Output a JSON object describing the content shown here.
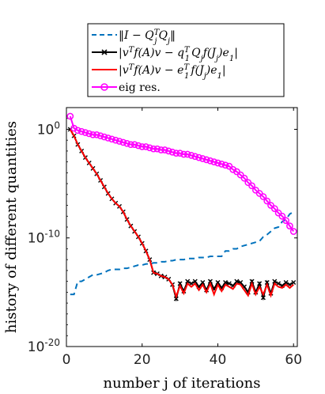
{
  "chart_data": {
    "type": "line",
    "xlabel": "number j of iterations",
    "ylabel": "history of different quantities",
    "xlim": [
      0,
      61
    ],
    "ylim_log10": [
      -20,
      2
    ],
    "y_scale": "log",
    "grid": false,
    "legend_placement": "top",
    "x_ticks": [
      0,
      20,
      40,
      60
    ],
    "x_tick_labels": [
      "0",
      "20",
      "40",
      "60"
    ],
    "y_ticks_log10": [
      0,
      -10,
      -20
    ],
    "y_tick_labels": [
      {
        "base": "10",
        "exp": "0"
      },
      {
        "base": "10",
        "exp": "-10"
      },
      {
        "base": "10",
        "exp": "-20"
      }
    ],
    "series": [
      {
        "name": "||I − Q_j^T Q_j||",
        "legend_latex": "‖I − Q",
        "color": "#0072BD",
        "style": "dashed",
        "marker": "none",
        "x": [
          1,
          2,
          3,
          4,
          5,
          6,
          7,
          8,
          9,
          10,
          11,
          12,
          13,
          14,
          15,
          16,
          17,
          18,
          19,
          20,
          21,
          22,
          23,
          24,
          25,
          26,
          27,
          28,
          29,
          30,
          31,
          32,
          33,
          34,
          35,
          36,
          37,
          38,
          39,
          40,
          41,
          42,
          43,
          44,
          45,
          46,
          47,
          48,
          49,
          50,
          51,
          52,
          53,
          54,
          55,
          56,
          57,
          58,
          59,
          60
        ],
        "log10_y": [
          -15.2,
          -15.2,
          -14.0,
          -14.0,
          -13.8,
          -13.6,
          -13.4,
          -13.4,
          -13.3,
          -13.2,
          -13.0,
          -12.9,
          -12.9,
          -12.9,
          -12.8,
          -12.8,
          -12.7,
          -12.6,
          -12.5,
          -12.5,
          -12.4,
          -12.4,
          -12.3,
          -12.3,
          -12.2,
          -12.2,
          -12.1,
          -12.1,
          -12.0,
          -12.0,
          -12.0,
          -11.9,
          -11.9,
          -11.9,
          -11.8,
          -11.8,
          -11.8,
          -11.7,
          -11.7,
          -11.7,
          -11.7,
          -11.2,
          -11.2,
          -11.0,
          -11.0,
          -10.8,
          -10.7,
          -10.6,
          -10.5,
          -10.4,
          -10.3,
          -9.9,
          -9.7,
          -9.4,
          -9.1,
          -9.0,
          -8.5,
          -8.3,
          -7.8,
          -7.6
        ]
      },
      {
        "name": "|v^T f(A) v − q_1^T Q_j f(J_j) e_1|",
        "color": "#000000",
        "style": "solid",
        "marker": "x",
        "x": [
          1,
          2,
          3,
          4,
          5,
          6,
          7,
          8,
          9,
          10,
          11,
          12,
          13,
          14,
          15,
          16,
          17,
          18,
          19,
          20,
          21,
          22,
          23,
          24,
          25,
          26,
          27,
          28,
          29,
          30,
          31,
          32,
          33,
          34,
          35,
          36,
          37,
          38,
          39,
          40,
          41,
          42,
          43,
          44,
          45,
          46,
          47,
          48,
          49,
          50,
          51,
          52,
          53,
          54,
          55,
          56,
          57,
          58,
          59,
          60
        ],
        "log10_y": [
          0.0,
          -0.6,
          -1.4,
          -2.0,
          -2.6,
          -3.1,
          -3.6,
          -4.1,
          -4.7,
          -5.3,
          -5.9,
          -6.4,
          -6.8,
          -7.1,
          -7.6,
          -8.3,
          -8.9,
          -9.4,
          -9.9,
          -10.5,
          -11.2,
          -12.0,
          -13.2,
          -13.3,
          -13.5,
          -13.6,
          -13.8,
          -14.3,
          -15.6,
          -14.2,
          -14.9,
          -14.0,
          -14.2,
          -14.0,
          -14.5,
          -14.1,
          -14.8,
          -14.0,
          -14.7,
          -14.1,
          -14.6,
          -14.1,
          -14.2,
          -14.4,
          -14.0,
          -14.1,
          -14.5,
          -15.0,
          -14.0,
          -15.0,
          -14.2,
          -15.5,
          -14.1,
          -15.1,
          -14.0,
          -14.2,
          -14.4,
          -14.1,
          -14.3,
          -14.1
        ]
      },
      {
        "name": "|v^T f(A) v − e_1^T f(J_j) e_1|",
        "color": "#FF0000",
        "style": "solid",
        "marker": "none",
        "x": [
          1,
          2,
          3,
          4,
          5,
          6,
          7,
          8,
          9,
          10,
          11,
          12,
          13,
          14,
          15,
          16,
          17,
          18,
          19,
          20,
          21,
          22,
          23,
          24,
          25,
          26,
          27,
          28,
          29,
          30,
          31,
          32,
          33,
          34,
          35,
          36,
          37,
          38,
          39,
          40,
          41,
          42,
          43,
          44,
          45,
          46,
          47,
          48,
          49,
          50,
          51,
          52,
          53,
          54,
          55,
          56,
          57,
          58,
          59,
          60
        ],
        "log10_y": [
          0.0,
          -0.6,
          -1.4,
          -2.0,
          -2.6,
          -3.1,
          -3.6,
          -4.1,
          -4.7,
          -5.3,
          -5.9,
          -6.4,
          -6.8,
          -7.1,
          -7.6,
          -8.3,
          -8.9,
          -9.4,
          -9.9,
          -10.5,
          -11.2,
          -12.0,
          -13.2,
          -13.3,
          -13.5,
          -13.6,
          -13.8,
          -14.3,
          -15.4,
          -14.4,
          -15.1,
          -14.2,
          -14.5,
          -14.2,
          -14.8,
          -14.3,
          -15.0,
          -14.2,
          -15.2,
          -14.3,
          -14.9,
          -14.3,
          -14.5,
          -14.7,
          -14.2,
          -14.3,
          -14.8,
          -15.3,
          -14.2,
          -15.2,
          -14.5,
          -15.2,
          -14.3,
          -15.3,
          -14.2,
          -14.5,
          -14.6,
          -14.3,
          -14.6,
          -14.3
        ]
      },
      {
        "name": "eig res.",
        "color": "#FF00FF",
        "style": "solid",
        "marker": "o",
        "x": [
          1,
          2,
          3,
          4,
          5,
          6,
          7,
          8,
          9,
          10,
          11,
          12,
          13,
          14,
          15,
          16,
          17,
          18,
          19,
          20,
          21,
          22,
          23,
          24,
          25,
          26,
          27,
          28,
          29,
          30,
          31,
          32,
          33,
          34,
          35,
          36,
          37,
          38,
          39,
          40,
          41,
          42,
          43,
          44,
          45,
          46,
          47,
          48,
          49,
          50,
          51,
          52,
          53,
          54,
          55,
          56,
          57,
          58,
          59,
          60
        ],
        "log10_y": [
          1.2,
          0.1,
          -0.1,
          -0.2,
          -0.3,
          -0.4,
          -0.5,
          -0.5,
          -0.6,
          -0.7,
          -0.8,
          -0.9,
          -1.0,
          -1.1,
          -1.2,
          -1.3,
          -1.4,
          -1.4,
          -1.5,
          -1.6,
          -1.6,
          -1.7,
          -1.8,
          -1.8,
          -1.9,
          -1.9,
          -2.0,
          -2.1,
          -2.2,
          -2.2,
          -2.3,
          -2.3,
          -2.4,
          -2.5,
          -2.6,
          -2.7,
          -2.8,
          -2.9,
          -3.0,
          -3.1,
          -3.2,
          -3.3,
          -3.4,
          -3.7,
          -3.9,
          -4.2,
          -4.5,
          -4.9,
          -5.2,
          -5.6,
          -5.9,
          -6.2,
          -6.6,
          -7.0,
          -7.3,
          -7.7,
          -8.0,
          -8.4,
          -8.9,
          -9.4
        ]
      }
    ]
  }
}
